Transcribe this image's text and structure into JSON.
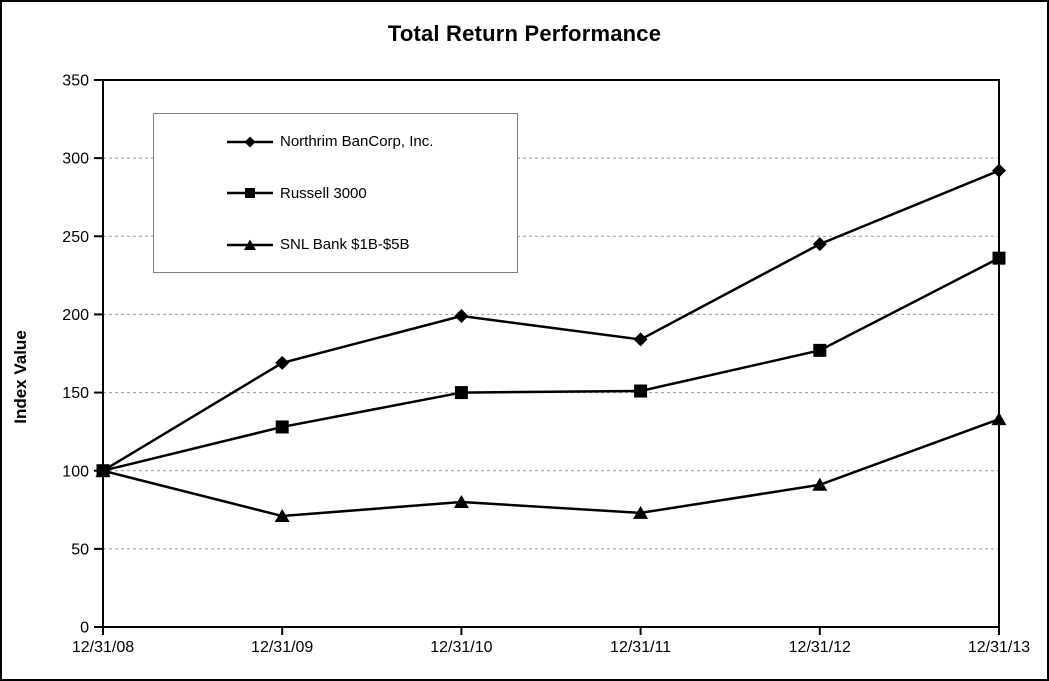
{
  "chart_data": {
    "type": "line",
    "title": "Total Return Performance",
    "xlabel": "",
    "ylabel": "Index Value",
    "categories": [
      "12/31/08",
      "12/31/09",
      "12/31/10",
      "12/31/11",
      "12/31/12",
      "12/31/13"
    ],
    "yticks": [
      0,
      50,
      100,
      150,
      200,
      250,
      300,
      350
    ],
    "ylim": [
      0,
      350
    ],
    "grid": "horizontal dashed gridlines at every 50, hidden behind legend",
    "legend_position": "inside upper-left",
    "series": [
      {
        "name": "Northrim BanCorp, Inc.",
        "marker": "diamond",
        "color": "#000000",
        "values": [
          100,
          169,
          199,
          184,
          245,
          292
        ]
      },
      {
        "name": "Russell 3000",
        "marker": "square",
        "color": "#000000",
        "values": [
          100,
          128,
          150,
          151,
          177,
          236
        ]
      },
      {
        "name": "SNL Bank $1B-$5B",
        "marker": "triangle",
        "color": "#000000",
        "values": [
          100,
          71,
          80,
          73,
          91,
          133
        ]
      }
    ]
  },
  "colors": {
    "line": "#000000",
    "gridline": "#999999",
    "axis": "#000000",
    "legend_border": "#808080",
    "background": "#ffffff",
    "frame_border": "#000000"
  }
}
